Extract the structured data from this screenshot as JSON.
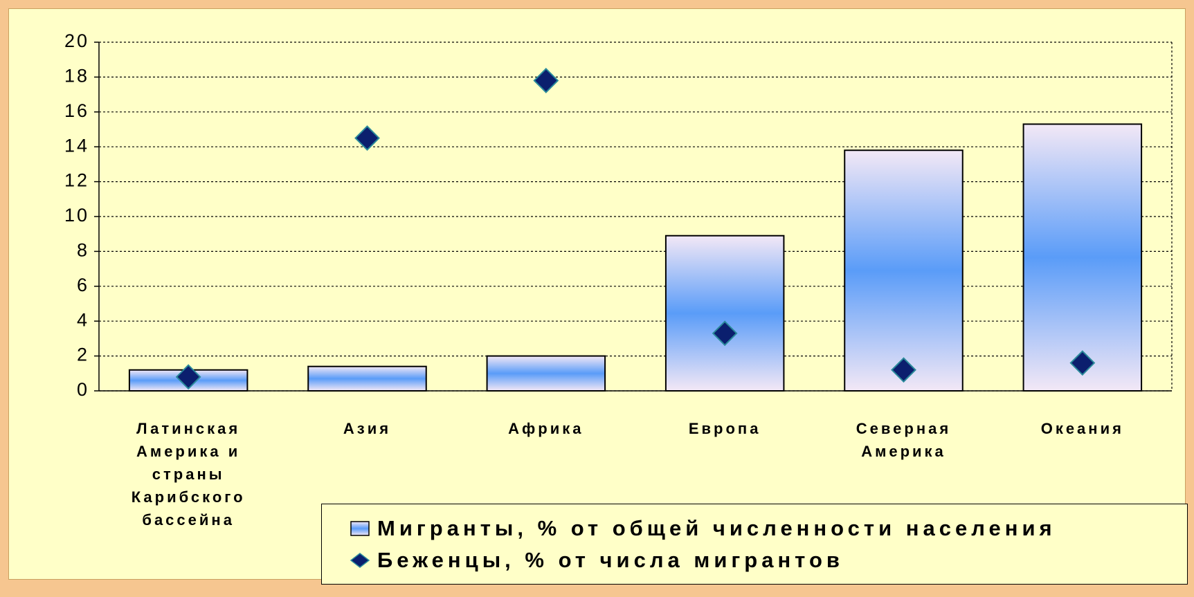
{
  "chart_data": {
    "type": "bar_scatter",
    "categories": [
      "Латинская Америка и страны Карибского бассейна",
      "Азия",
      "Африка",
      "Европа",
      "Северная Америка",
      "Океания"
    ],
    "series": [
      {
        "name": "Мигранты, % от общей численности населения",
        "type": "bar",
        "color": "#5a9cf8",
        "values": [
          1.2,
          1.4,
          2.0,
          8.9,
          13.8,
          15.3
        ]
      },
      {
        "name": "Беженцы, % от числа мигрантов",
        "type": "scatter",
        "color": "#0b1f6e",
        "values": [
          0.8,
          14.5,
          17.8,
          3.3,
          1.2,
          1.6
        ]
      }
    ],
    "ylim": [
      0,
      20
    ],
    "yticks": [
      0,
      2,
      4,
      6,
      8,
      10,
      12,
      14,
      16,
      18,
      20
    ],
    "grid": true
  }
}
